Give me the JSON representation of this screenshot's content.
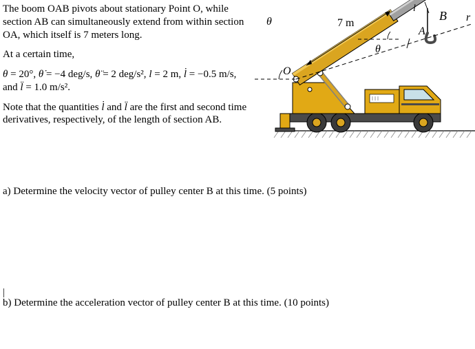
{
  "problem": {
    "p1": "The boom OAB pivots about stationary Point O, while section AB can simultaneously extend from within section OA, which itself is 7 meters long.",
    "p2": "At a certain time,",
    "given_html": "<span class='ital'>θ</span> = 20°, <span class='ital'>θ̇</span> = −4 deg/s, <span class='ital'>θ̈</span> = 2 deg/s², <span class='ital'>l</span> = 2 m, <span class='ital'>l̇</span> = −0.5 m/s, and  <span class='ital'>l̈</span> = 1.0 m/s².",
    "p3_html": "Note that the quantities <span class='ital'>l̇</span> and <span class='ital'>l̈</span> are the first and second time derivatives, respectively, of the length of section AB."
  },
  "questions": {
    "a": "a) Determine the velocity vector of pulley center B at this time. (5 points)",
    "b": "b) Determine the acceleration vector of pulley center B at this time. (10 points)"
  },
  "figure": {
    "labels": {
      "theta_left": "θ",
      "theta_right": "θ",
      "len": "7 m",
      "O": "O",
      "A": "A",
      "B": "B",
      "r": "r",
      "l": "l"
    },
    "colors": {
      "boom_outer": "#DAA520",
      "boom_inner": "#808080",
      "truck_body": "#E1A915",
      "truck_dark": "#4a4a4a",
      "cab_window": "#c8e0e8",
      "wheel_fill": "#3a3a3a",
      "wheel_rim": "#DAA520",
      "ground_hatch": "#888888",
      "outline": "#000000"
    }
  }
}
